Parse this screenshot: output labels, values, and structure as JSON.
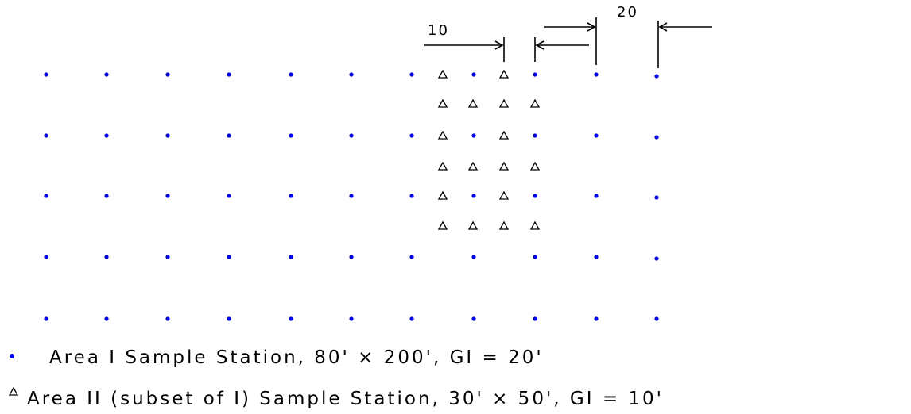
{
  "colors": {
    "station_dot": "#0000ff",
    "ink": "#000000",
    "background": "#ffffff"
  },
  "dimensions": {
    "area2_interval_label": "10",
    "area1_interval_label": "20"
  },
  "legend": {
    "area1": {
      "symbol": "blue-dot",
      "text": "Area I Sample Station, 80' × 200', GI = 20'"
    },
    "area2": {
      "symbol": "triangle",
      "text": "Area II (subset of I) Sample Station, 30' × 50', GI = 10'"
    }
  },
  "grid": {
    "area1_columns": 11,
    "area1_rows": 5,
    "area2_columns": 4,
    "area2_rows": 6
  }
}
